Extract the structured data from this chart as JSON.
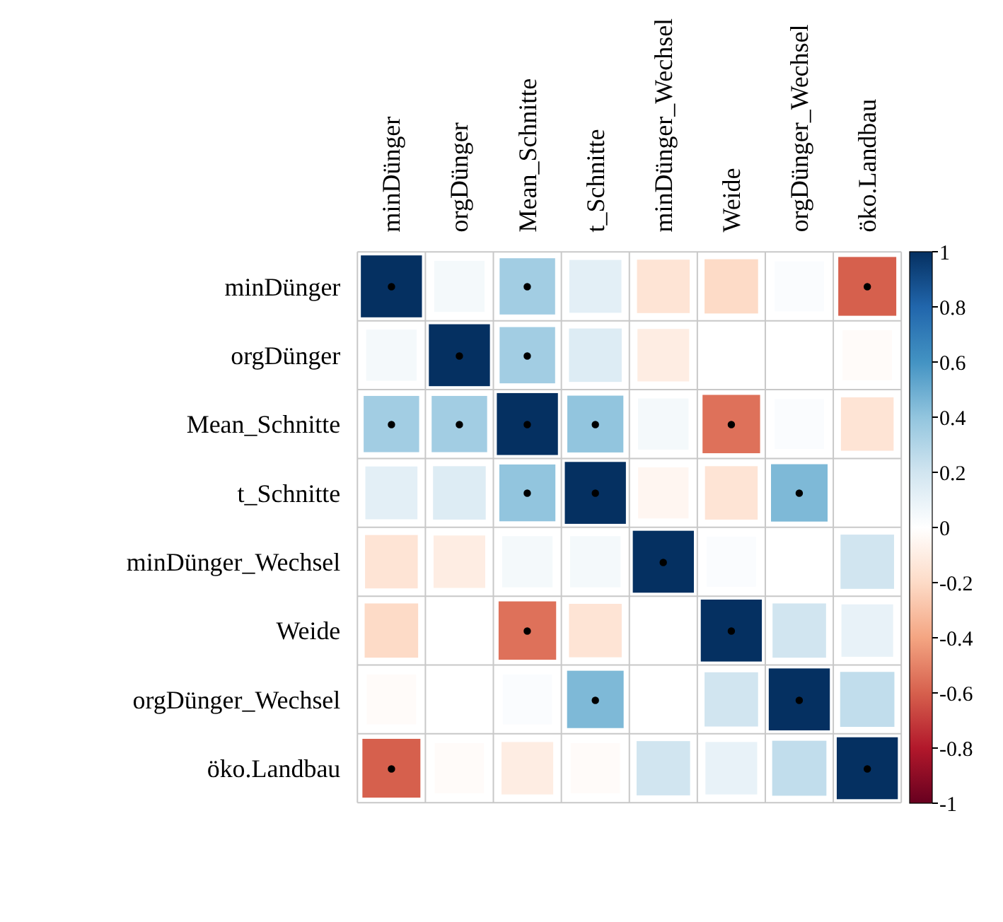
{
  "chart_data": {
    "type": "heatmap",
    "categories": [
      "minDünger",
      "orgDünger",
      "Mean_Schnitte",
      "t_Schnitte",
      "minDünger_Wechsel",
      "Weide",
      "orgDünger_Wechsel",
      "öko.Landbau"
    ],
    "y_categories": [
      "minDünger",
      "orgDünger",
      "Mean_Schnitte",
      "t_Schnitte",
      "minDünger_Wechsel",
      "Weide",
      "orgDünger_Wechsel",
      "öko.Landbau"
    ],
    "cells": [
      [
        1,
        0.05,
        0.35,
        0.12,
        -0.15,
        -0.2,
        0.02,
        -0.6
      ],
      [
        0.05,
        1,
        0.35,
        0.15,
        -0.1,
        0,
        0,
        -0.02
      ],
      [
        0.35,
        0.35,
        1,
        0.4,
        0.05,
        -0.55,
        0.02,
        -0.15
      ],
      [
        0.12,
        0.15,
        0.4,
        1,
        -0.05,
        -0.15,
        0.45,
        0
      ],
      [
        -0.15,
        -0.1,
        0.05,
        0.05,
        1,
        0.02,
        0,
        0.2
      ],
      [
        -0.2,
        0,
        -0.55,
        -0.15,
        0,
        1,
        0.2,
        0.1
      ],
      [
        -0.02,
        0,
        0.02,
        0.45,
        0,
        0.2,
        1,
        0.25
      ],
      [
        -0.6,
        -0.02,
        -0.1,
        -0.02,
        0.2,
        0.1,
        0.25,
        1
      ]
    ],
    "cell_labels": [
      [
        "•",
        null,
        "•",
        null,
        null,
        null,
        null,
        "•"
      ],
      [
        null,
        "•",
        "•",
        null,
        null,
        null,
        null,
        null
      ],
      [
        "•",
        "•",
        "•",
        "•",
        null,
        "•",
        null,
        null
      ],
      [
        null,
        null,
        "•",
        "•",
        null,
        null,
        "•",
        null
      ],
      [
        null,
        null,
        null,
        null,
        "•",
        null,
        null,
        null
      ],
      [
        null,
        null,
        "•",
        null,
        null,
        "•",
        null,
        null
      ],
      [
        null,
        null,
        null,
        "•",
        null,
        null,
        "•",
        null
      ],
      [
        "•",
        null,
        null,
        null,
        null,
        null,
        null,
        "•"
      ]
    ],
    "clim": [
      -1,
      1
    ],
    "cticks": [
      -1,
      -0.8,
      -0.6,
      -0.4,
      -0.2,
      0,
      0.2,
      0.4,
      0.6,
      0.8,
      1
    ]
  }
}
